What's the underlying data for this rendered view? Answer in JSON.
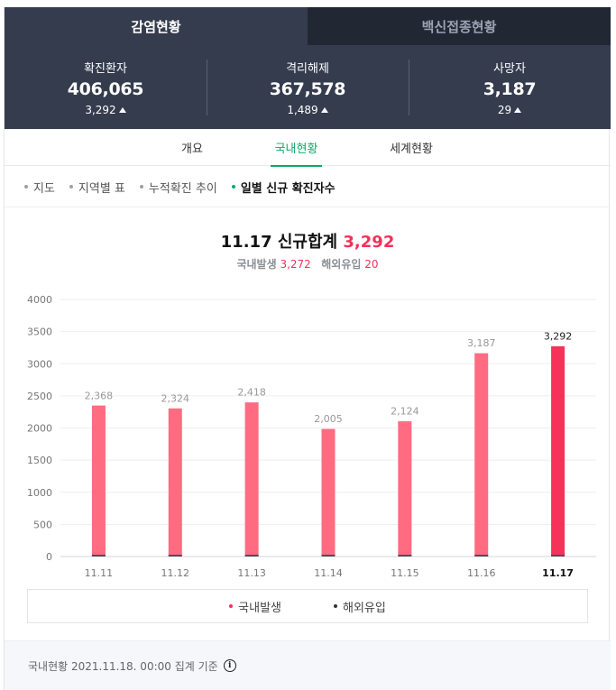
{
  "top_tabs": [
    {
      "label": "감염현황",
      "active": true
    },
    {
      "label": "백신접종현황",
      "active": false
    }
  ],
  "summary": [
    {
      "label": "확진환자",
      "value": "406,065",
      "delta": "3,292"
    },
    {
      "label": "격리해제",
      "value": "367,578",
      "delta": "1,489"
    },
    {
      "label": "사망자",
      "value": "3,187",
      "delta": "29"
    }
  ],
  "sub_tabs": [
    {
      "label": "개요",
      "active": false
    },
    {
      "label": "국내현황",
      "active": true
    },
    {
      "label": "세계현황",
      "active": false
    }
  ],
  "chips": [
    {
      "label": "지도",
      "active": false
    },
    {
      "label": "지역별 표",
      "active": false
    },
    {
      "label": "누적확진 추이",
      "active": false
    },
    {
      "label": "일별 신규 확진자수",
      "active": true
    }
  ],
  "headline": {
    "date": "11.17",
    "label": "신규합계",
    "total": "3,292",
    "domestic_label": "국내발생",
    "domestic_value": "3,272",
    "overseas_label": "해외유입",
    "overseas_value": "20"
  },
  "colors": {
    "accent_green": "#11a869",
    "bar_domestic": "#ff6b81",
    "bar_domestic_latest": "#f7325a",
    "bar_overseas": "#4a4f59",
    "header_bg": "#353c4e"
  },
  "chart_data": {
    "type": "bar",
    "stacked": true,
    "categories": [
      "11.11",
      "11.12",
      "11.13",
      "11.14",
      "11.15",
      "11.16",
      "11.17"
    ],
    "series": [
      {
        "name": "국내발생",
        "values": [
          2349,
          2305,
          2398,
          1985,
          2104,
          3163,
          3272
        ]
      },
      {
        "name": "해외유입",
        "values": [
          19,
          19,
          20,
          20,
          20,
          24,
          20
        ]
      }
    ],
    "totals": [
      2368,
      2324,
      2418,
      2005,
      2124,
      3187,
      3292
    ],
    "total_labels": [
      "2,368",
      "2,324",
      "2,418",
      "2,005",
      "2,124",
      "3,187",
      "3,292"
    ],
    "y_ticks": [
      0,
      500,
      1000,
      1500,
      2000,
      2500,
      3000,
      3500,
      4000
    ],
    "ylim": [
      0,
      4000
    ],
    "highlight_last": true,
    "grid": true
  },
  "legend": [
    {
      "label": "국내발생",
      "color": "#f2315a"
    },
    {
      "label": "해외유입",
      "color": "#333333"
    }
  ],
  "footer": {
    "text": "국내현황 2021.11.18. 00:00 집계 기준",
    "icon": "info-icon"
  }
}
